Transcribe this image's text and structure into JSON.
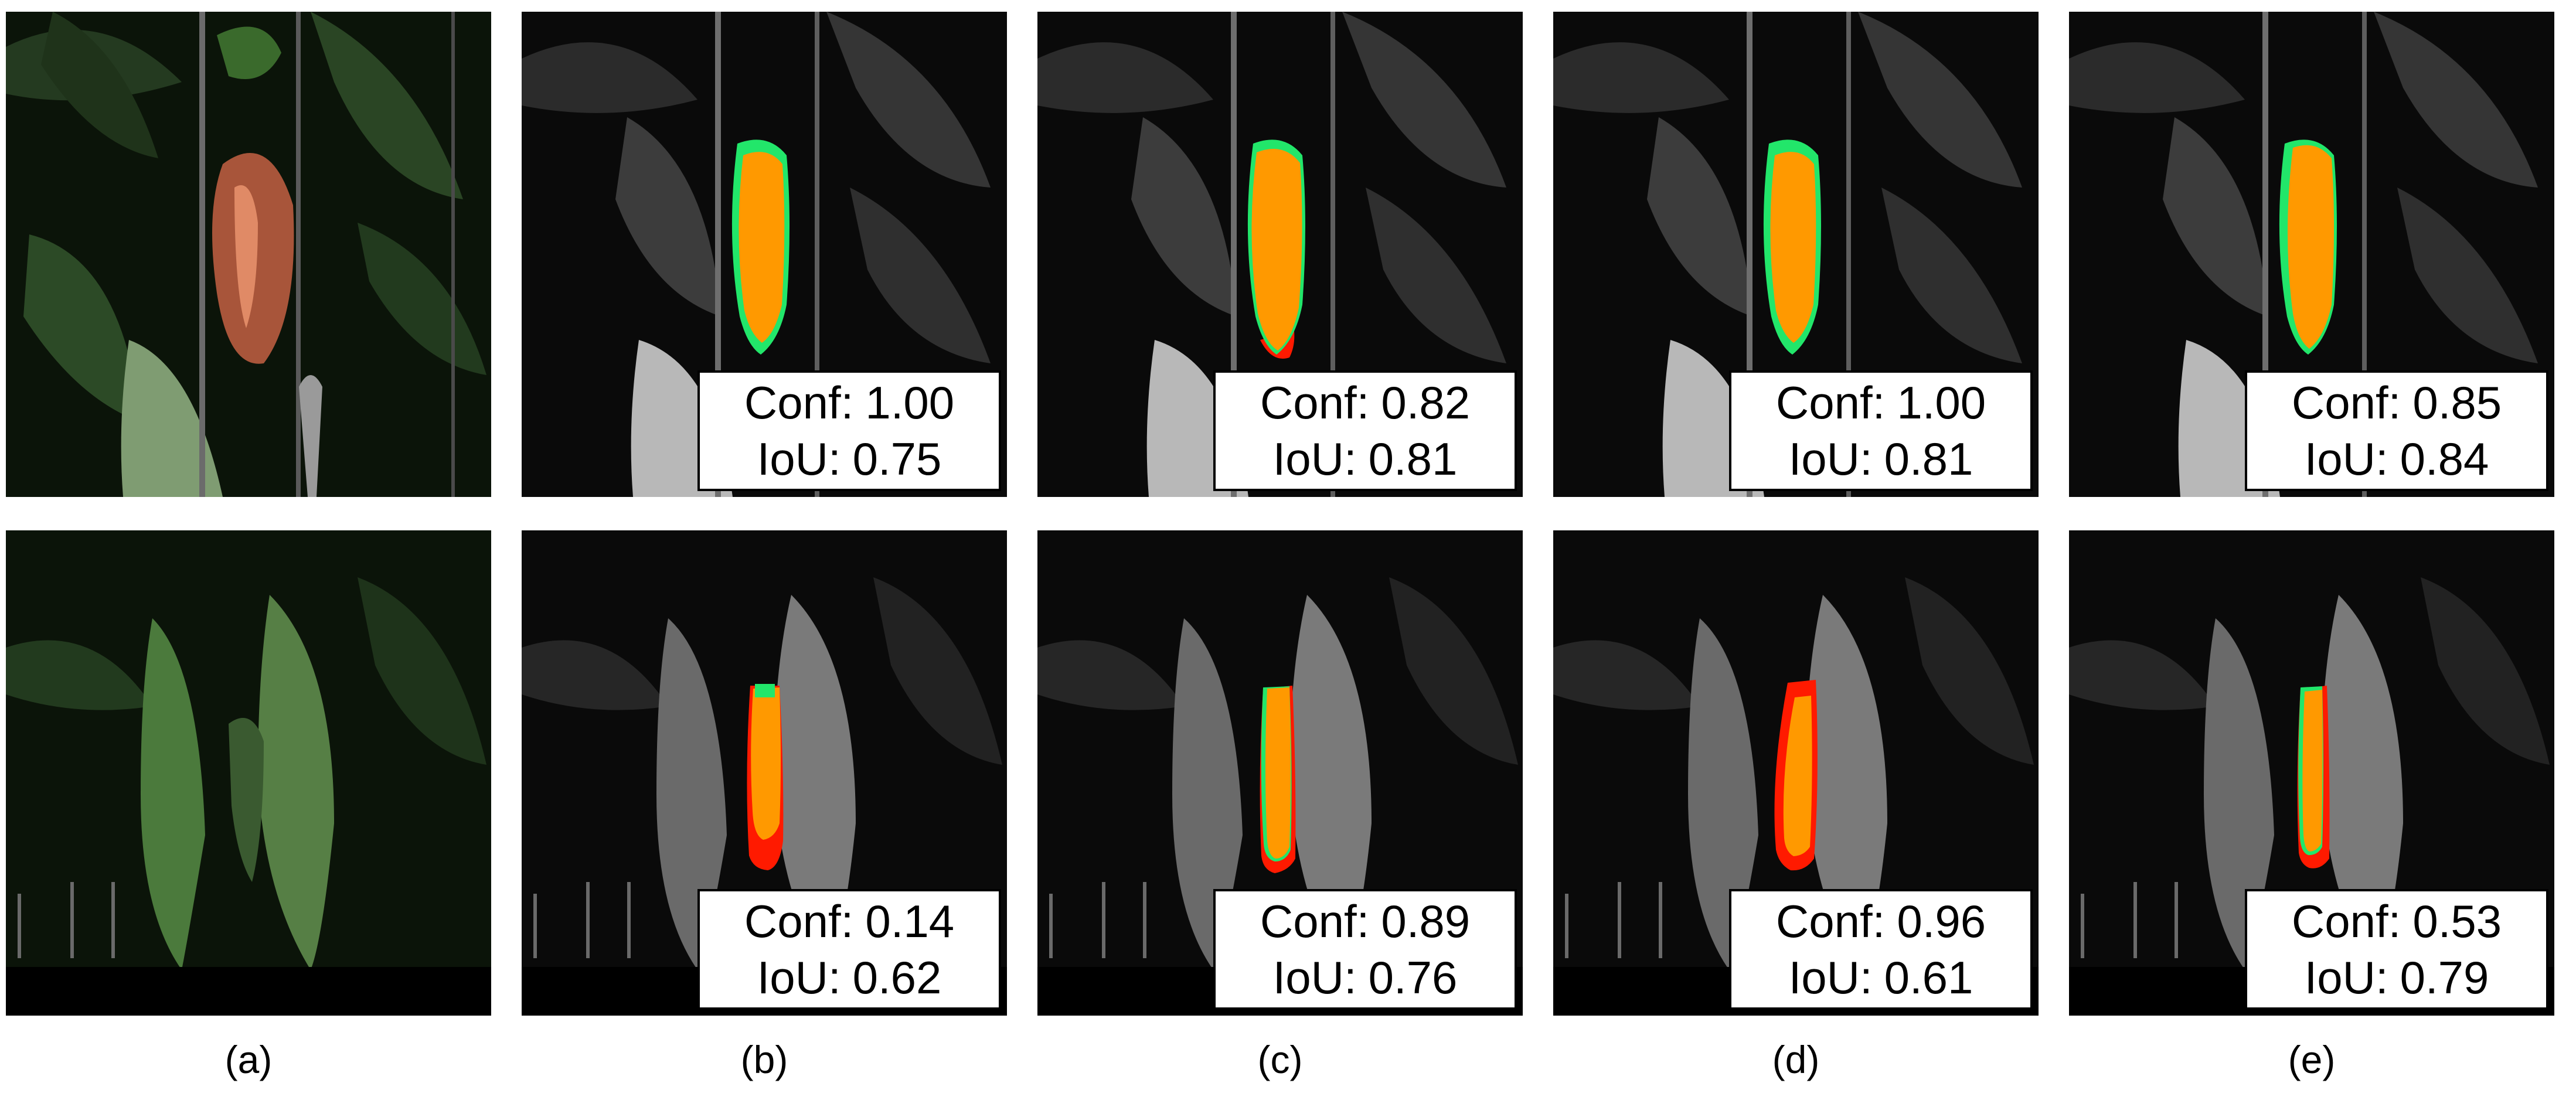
{
  "figure": {
    "column_labels": [
      "(a)",
      "(b)",
      "(c)",
      "(d)",
      "(e)"
    ],
    "conf_label": "Conf:",
    "iou_label": "IoU:",
    "rows": [
      {
        "panels": [
          {
            "kind": "rgb"
          },
          {
            "kind": "gray",
            "conf": "1.00",
            "iou": "0.75"
          },
          {
            "kind": "gray",
            "conf": "0.82",
            "iou": "0.81"
          },
          {
            "kind": "gray",
            "conf": "1.00",
            "iou": "0.81"
          },
          {
            "kind": "gray",
            "conf": "0.85",
            "iou": "0.84"
          }
        ]
      },
      {
        "panels": [
          {
            "kind": "rgb"
          },
          {
            "kind": "gray",
            "conf": "0.14",
            "iou": "0.62"
          },
          {
            "kind": "gray",
            "conf": "0.89",
            "iou": "0.76"
          },
          {
            "kind": "gray",
            "conf": "0.96",
            "iou": "0.61"
          },
          {
            "kind": "gray",
            "conf": "0.53",
            "iou": "0.79"
          }
        ]
      }
    ],
    "colors": {
      "prediction_overlap": "#ff9900",
      "ground_truth_only": "#22e66a",
      "prediction_only": "#ff1a00"
    }
  }
}
